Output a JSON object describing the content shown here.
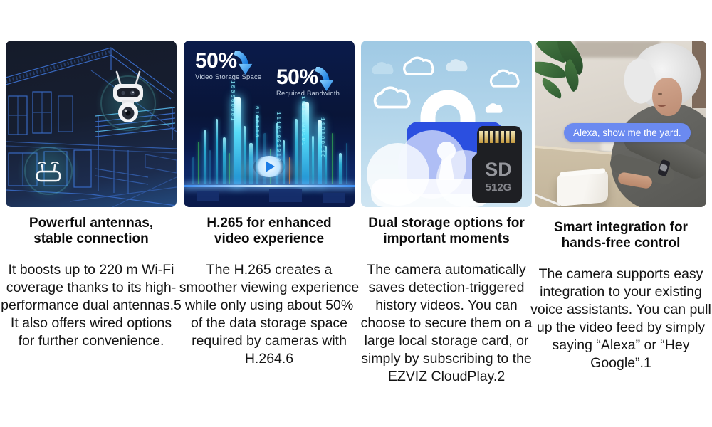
{
  "page": {
    "background": "#ffffff"
  },
  "colors": {
    "accent_lock_blue": "#2b4fe0",
    "speech_bubble_blue": "#6b8af0",
    "cyan_glow": "#3fd6f2",
    "dark_navy": "#161c2b",
    "deep_blue": "#0a1b4b",
    "sky_blue": "#9fc9e4",
    "text": "#0c0c0c"
  },
  "icons": {
    "down_arrow_icon": "↓",
    "play_icon": "▶",
    "wifi_router_icon": "router-with-antennas",
    "security_camera_icon": "dual-lens-camera",
    "cloud_icon": "cloud",
    "lock_icon": "padlock",
    "sd_card_icon": "microsd-card"
  },
  "cards": [
    {
      "id": "antennas",
      "title_line1": "Powerful antennas,",
      "title_line2": "stable connection",
      "body": "It boosts up to 220 m Wi-Fi coverage thanks to  its high-performance dual antennas.5 It also offers wired options for further convenience."
    },
    {
      "id": "h265",
      "title_line1": "H.265 for enhanced",
      "title_line2": "video experience",
      "body": "The H.265 creates a smoother viewing experience while only using about 50% of the data storage space required by cameras with H.264.6",
      "image": {
        "stats": [
          {
            "value": "50%",
            "label": "Video Storage Space"
          },
          {
            "value": "50%",
            "label": "Required Bandwidth"
          }
        ],
        "binary": [
          "100000001",
          "0100110",
          "11101001010",
          "10010100101",
          "110100110"
        ]
      }
    },
    {
      "id": "storage",
      "title_line1": "Dual storage options for",
      "title_line2": "important moments",
      "body": "The camera automatically saves detection-triggered history videos. You can choose to secure them on a large local storage card, or simply by subscribing to the EZVIZ CloudPlay.2",
      "image": {
        "sd_label": "SD",
        "sd_capacity": "512G"
      }
    },
    {
      "id": "voice",
      "title_line1": "Smart integration for",
      "title_line2": "hands-free control",
      "body": "The camera supports easy integration to your existing voice assistants. You can pull up the video feed by simply saying “Alexa” or “Hey Google”.1",
      "image": {
        "speech_bubble": "Alexa, show me the yard."
      }
    }
  ]
}
